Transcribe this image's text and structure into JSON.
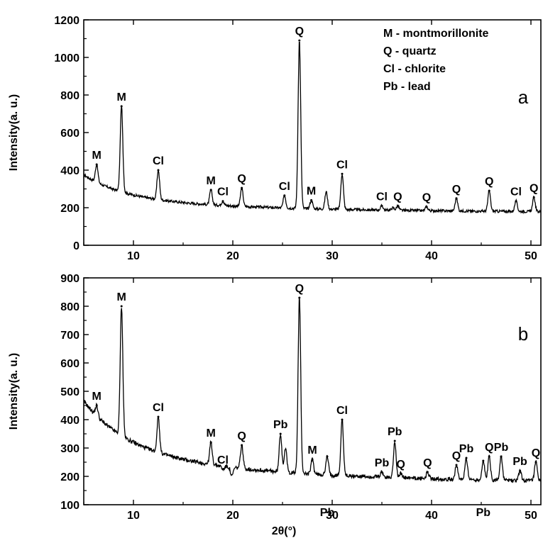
{
  "chart_data": [
    {
      "type": "line",
      "panel_label": "a",
      "xlabel": "",
      "ylabel": "Intensity(a. u.)",
      "xlim": [
        5,
        51
      ],
      "ylim": [
        0,
        1200
      ],
      "x_ticks": [
        10,
        20,
        30,
        40,
        50
      ],
      "y_ticks": [
        0,
        200,
        400,
        600,
        800,
        1000,
        1200
      ],
      "legend": [
        "M - montmorillonite",
        "Q - quartz",
        "Cl - chlorite",
        "Pb - lead"
      ],
      "background": {
        "start": 375,
        "decay": 150,
        "tau": 4.0,
        "floor": 175
      },
      "peaks": [
        {
          "x": 6.3,
          "y": 430,
          "label": "M"
        },
        {
          "x": 8.8,
          "y": 740,
          "label": "M"
        },
        {
          "x": 12.5,
          "y": 400,
          "label": "Cl"
        },
        {
          "x": 17.8,
          "y": 295,
          "label": "M"
        },
        {
          "x": 19.0,
          "y": 235,
          "label": "Cl"
        },
        {
          "x": 20.9,
          "y": 305,
          "label": "Q"
        },
        {
          "x": 25.2,
          "y": 265,
          "label": "Cl"
        },
        {
          "x": 26.7,
          "y": 1090,
          "label": "Q"
        },
        {
          "x": 27.9,
          "y": 240,
          "label": "M"
        },
        {
          "x": 31.0,
          "y": 380,
          "label": "Cl"
        },
        {
          "x": 35.0,
          "y": 210,
          "label": "Cl"
        },
        {
          "x": 36.6,
          "y": 210,
          "label": "Q"
        },
        {
          "x": 39.5,
          "y": 205,
          "label": "Q"
        },
        {
          "x": 42.5,
          "y": 250,
          "label": "Q"
        },
        {
          "x": 45.8,
          "y": 290,
          "label": "Q"
        },
        {
          "x": 48.5,
          "y": 235,
          "label": "Cl"
        },
        {
          "x": 50.3,
          "y": 255,
          "label": "Q"
        }
      ],
      "minor_peaks": [
        {
          "x": 29.4,
          "y": 285
        },
        {
          "x": 22.9,
          "y": 205
        },
        {
          "x": 36.1,
          "y": 200
        }
      ]
    },
    {
      "type": "line",
      "panel_label": "b",
      "xlabel": "2θ(°)",
      "ylabel": "Intensity(a. u.)",
      "xlim": [
        5,
        51
      ],
      "ylim": [
        100,
        900
      ],
      "x_ticks": [
        10,
        20,
        30,
        40,
        50
      ],
      "y_ticks": [
        100,
        200,
        300,
        400,
        500,
        600,
        700,
        800,
        900
      ],
      "background": {
        "start": 465,
        "decay": 290,
        "tau": 4.5,
        "floor": 175
      },
      "peaks": [
        {
          "x": 6.3,
          "y": 450,
          "label": "M"
        },
        {
          "x": 8.8,
          "y": 800,
          "label": "M"
        },
        {
          "x": 12.5,
          "y": 410,
          "label": "Cl"
        },
        {
          "x": 17.8,
          "y": 320,
          "label": "M"
        },
        {
          "x": 19.0,
          "y": 225,
          "label": "Cl"
        },
        {
          "x": 20.9,
          "y": 310,
          "label": "Q"
        },
        {
          "x": 24.8,
          "y": 350,
          "label": "Pb"
        },
        {
          "x": 26.7,
          "y": 830,
          "label": "Q"
        },
        {
          "x": 28.0,
          "y": 260,
          "label": "M"
        },
        {
          "x": 29.5,
          "y": 270,
          "label": "Pb",
          "label_below": true
        },
        {
          "x": 31.0,
          "y": 400,
          "label": "Cl"
        },
        {
          "x": 35.0,
          "y": 215,
          "label": "Pb"
        },
        {
          "x": 36.3,
          "y": 325,
          "label": "Pb"
        },
        {
          "x": 36.9,
          "y": 210,
          "label": "Q"
        },
        {
          "x": 39.6,
          "y": 215,
          "label": "Q"
        },
        {
          "x": 42.5,
          "y": 240,
          "label": "Q"
        },
        {
          "x": 43.5,
          "y": 265,
          "label": "Pb"
        },
        {
          "x": 45.2,
          "y": 255,
          "label": "Pb",
          "label_below": true
        },
        {
          "x": 45.8,
          "y": 270,
          "label": "Q"
        },
        {
          "x": 47.0,
          "y": 270,
          "label": "Pb"
        },
        {
          "x": 48.9,
          "y": 220,
          "label": "Pb"
        },
        {
          "x": 50.5,
          "y": 250,
          "label": "Q"
        }
      ],
      "minor_peaks": [
        {
          "x": 25.3,
          "y": 300
        },
        {
          "x": 19.9,
          "y": 200
        }
      ]
    }
  ]
}
